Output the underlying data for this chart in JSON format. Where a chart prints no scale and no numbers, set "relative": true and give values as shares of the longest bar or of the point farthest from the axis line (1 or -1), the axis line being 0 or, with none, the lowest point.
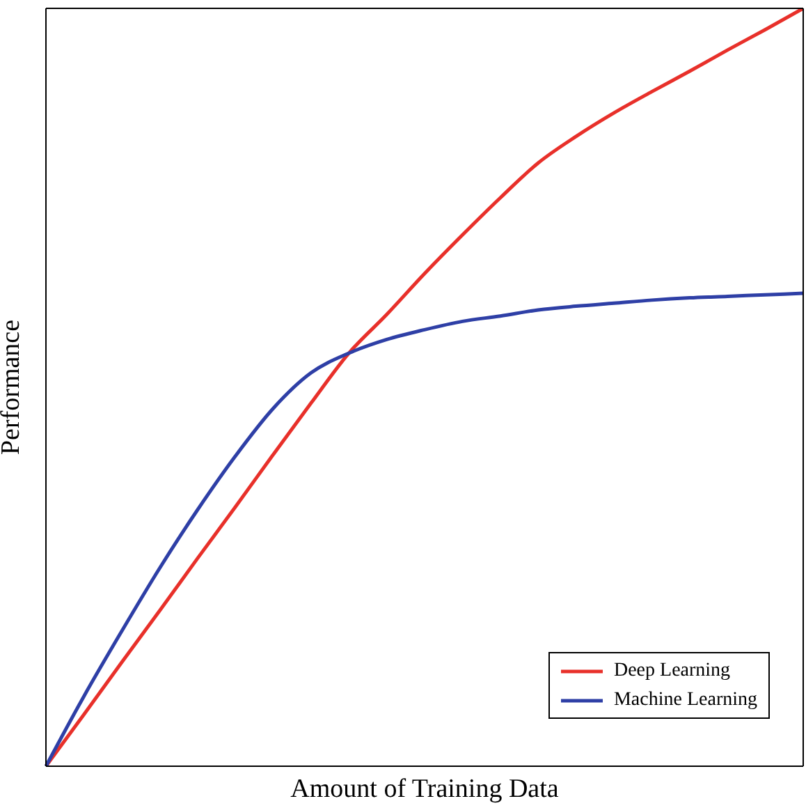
{
  "chart_data": {
    "type": "line",
    "xlabel": "Amount of Training Data",
    "ylabel": "Performance",
    "relative": true,
    "legend": "bottom right",
    "marker": "none",
    "line_style": "solid",
    "categories": [
      null,
      null,
      null,
      null,
      null,
      null,
      null,
      null,
      null,
      null,
      null,
      null,
      null,
      null,
      null,
      null,
      null,
      null,
      null,
      null,
      null
    ],
    "series": [
      {
        "name": "Deep Learning",
        "color": "#e8302a",
        "values": [
          0,
          0.068,
          0.137,
          0.205,
          0.274,
          0.342,
          0.411,
          0.479,
          0.545,
          0.596,
          0.65,
          0.701,
          0.75,
          0.796,
          0.831,
          0.862,
          0.89,
          0.917,
          0.945,
          0.972,
          1
        ]
      },
      {
        "name": "Machine Learning",
        "color": "#2e3fa6",
        "values": [
          0,
          0.092,
          0.178,
          0.261,
          0.338,
          0.409,
          0.472,
          0.519,
          0.545,
          0.563,
          0.576,
          0.587,
          0.594,
          0.602,
          0.607,
          0.611,
          0.615,
          0.618,
          0.62,
          0.622,
          0.624
        ]
      }
    ]
  }
}
